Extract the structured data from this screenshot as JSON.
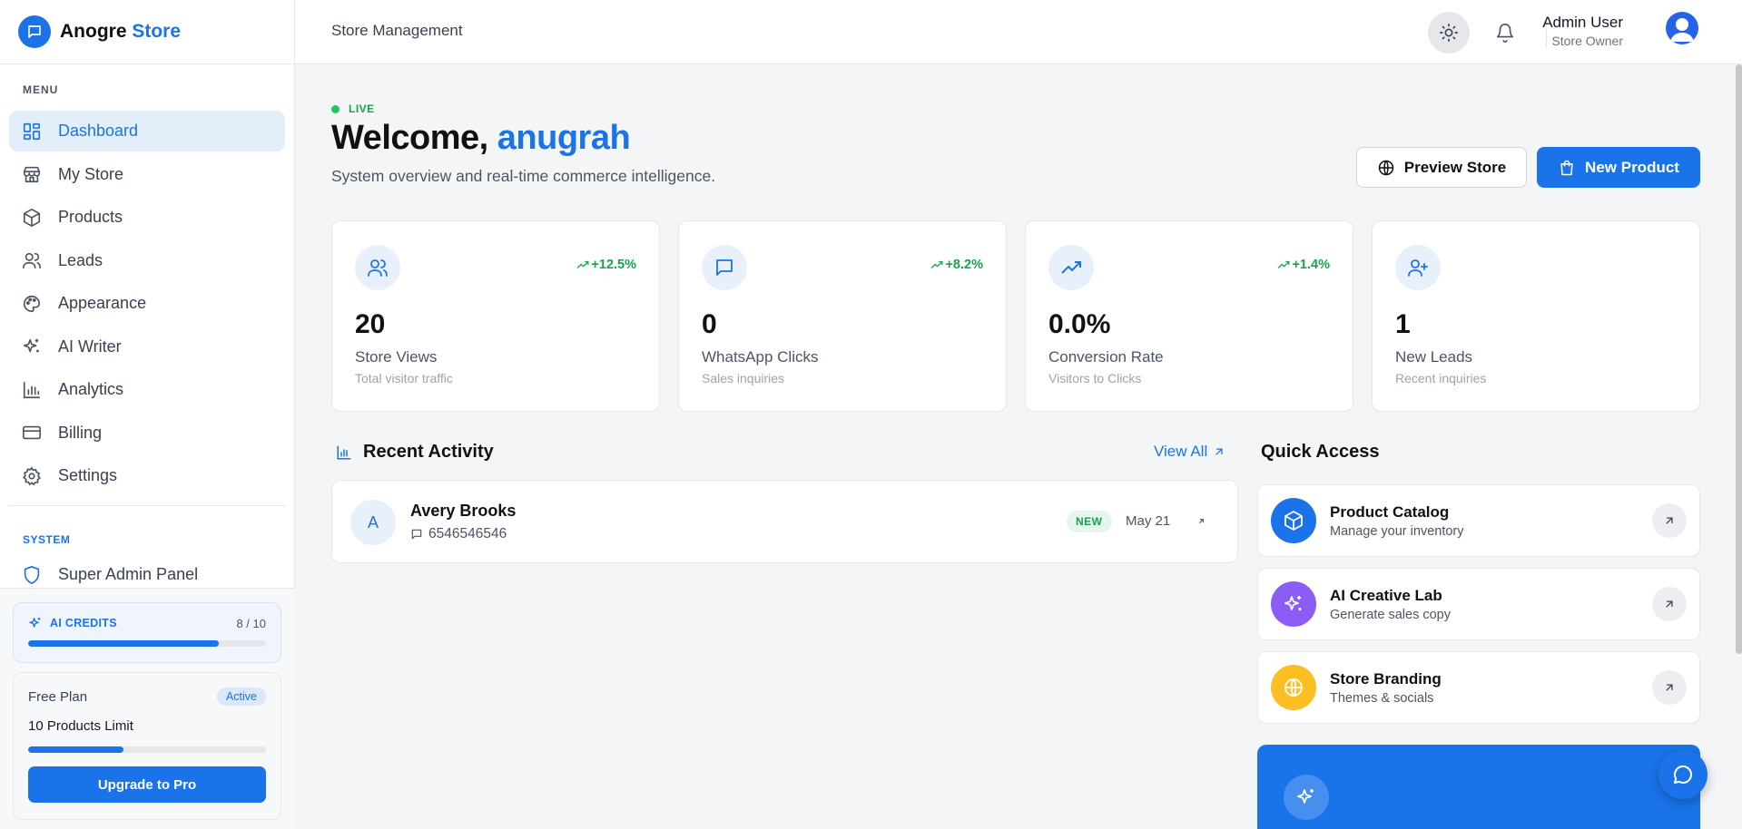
{
  "brand": {
    "name_part1": "Anogre",
    "name_part2": "Store",
    "logo_icon": "chat-bubble-icon"
  },
  "sidebar": {
    "menu_label": "MENU",
    "items": [
      {
        "label": "Dashboard",
        "icon": "dashboard-grid-icon",
        "active": true
      },
      {
        "label": "My Store",
        "icon": "store-icon"
      },
      {
        "label": "Products",
        "icon": "box-icon"
      },
      {
        "label": "Leads",
        "icon": "users-icon"
      },
      {
        "label": "Appearance",
        "icon": "palette-icon"
      },
      {
        "label": "AI Writer",
        "icon": "sparkles-icon"
      },
      {
        "label": "Analytics",
        "icon": "bar-chart-icon"
      },
      {
        "label": "Billing",
        "icon": "credit-card-icon"
      },
      {
        "label": "Settings",
        "icon": "gear-icon"
      }
    ],
    "system_label": "SYSTEM",
    "system_items": [
      {
        "label": "Super Admin Panel",
        "icon": "shield-icon"
      }
    ],
    "credits": {
      "label": "AI CREDITS",
      "count": "8 / 10",
      "used": 8,
      "total": 10
    },
    "plan": {
      "name": "Free Plan",
      "badge": "Active",
      "limit": "10 Products Limit",
      "usage_fraction": 0.4,
      "upgrade_label": "Upgrade to Pro"
    }
  },
  "header": {
    "title": "Store Management",
    "user_name": "Admin User",
    "user_role": "Store Owner",
    "icons": [
      "sun-icon",
      "bell-icon"
    ]
  },
  "main": {
    "live_label": "LIVE",
    "welcome_prefix": "Welcome,",
    "welcome_name": "anugrah",
    "subtitle": "System overview and real-time commerce intelligence.",
    "preview_label": "Preview Store",
    "new_product_label": "New Product",
    "stats": [
      {
        "icon": "users-icon",
        "change": "+12.5%",
        "value": "20",
        "label": "Store Views",
        "sub": "Total visitor traffic"
      },
      {
        "icon": "message-icon",
        "change": "+8.2%",
        "value": "0",
        "label": "WhatsApp Clicks",
        "sub": "Sales inquiries"
      },
      {
        "icon": "trending-up-icon",
        "change": "+1.4%",
        "value": "0.0%",
        "label": "Conversion Rate",
        "sub": "Visitors to Clicks"
      },
      {
        "icon": "user-plus-icon",
        "change": "",
        "value": "1",
        "label": "New Leads",
        "sub": "Recent inquiries"
      }
    ],
    "recent_activity": {
      "title": "Recent Activity",
      "view_all": "View All",
      "items": [
        {
          "initial": "A",
          "name": "Avery Brooks",
          "phone": "6546546546",
          "badge": "NEW",
          "date": "May 21"
        }
      ]
    },
    "quick_access": {
      "title": "Quick Access",
      "items": [
        {
          "title": "Product Catalog",
          "sub": "Manage your inventory",
          "icon": "box-icon",
          "color": "#1a73e8"
        },
        {
          "title": "AI Creative Lab",
          "sub": "Generate sales copy",
          "icon": "sparkles-icon",
          "color": "#8b5cf6"
        },
        {
          "title": "Store Branding",
          "sub": "Themes & socials",
          "icon": "globe-icon",
          "color": "#fbbf24"
        }
      ]
    }
  },
  "colors": {
    "accent": "#1a73e8",
    "success": "#16a34a",
    "purple": "#8b5cf6",
    "amber": "#fbbf24"
  }
}
